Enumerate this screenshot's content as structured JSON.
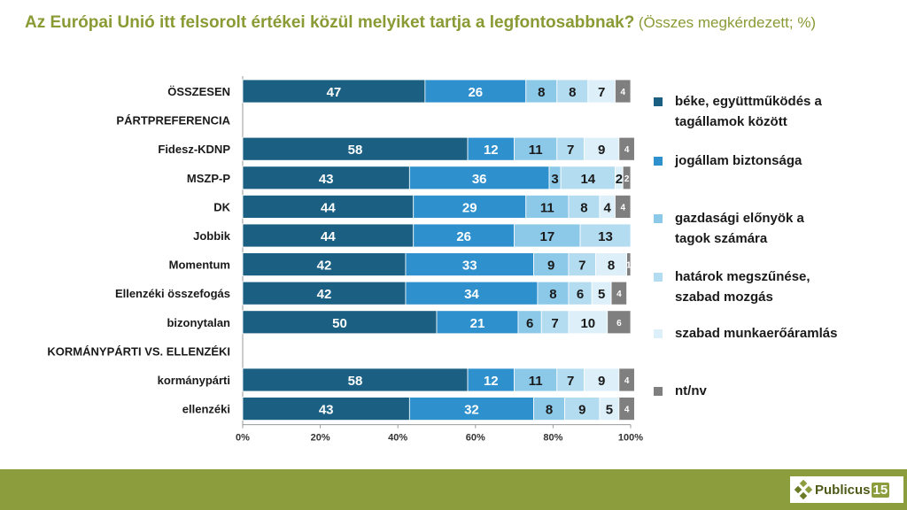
{
  "title": {
    "main": "Az Európai Unió itt felsorolt értékei közül melyiket tartja a legfontosabbnak?",
    "sub": "(Összes megkérdezett; %)"
  },
  "logo": {
    "text": "Publicus",
    "number": "15"
  },
  "chart_data": {
    "type": "bar",
    "orientation": "horizontal-stacked-100",
    "xlim": [
      0,
      100
    ],
    "x_ticks": [
      "0%",
      "20%",
      "40%",
      "60%",
      "80%",
      "100%"
    ],
    "colors": [
      "#1b5f82",
      "#2e90cc",
      "#8cc9e9",
      "#b4dcf1",
      "#ddf0fa",
      "#7f7f7f"
    ],
    "legend": [
      "béke, együttműködés a tagállamok között",
      "jogállam biztonsága",
      "gazdasági előnyök a tagok számára",
      "határok megszűnése, szabad mozgás",
      "szabad munkaerőáramlás",
      "nt/nv"
    ],
    "rows": [
      {
        "label": "ÖSSZESEN",
        "values": [
          47,
          26,
          8,
          8,
          7,
          4
        ]
      },
      {
        "label": "PÁRTPREFERENCIA",
        "header": true
      },
      {
        "label": "Fidesz-KDNP",
        "values": [
          58,
          12,
          11,
          7,
          9,
          4
        ]
      },
      {
        "label": "MSZP-P",
        "values": [
          43,
          36,
          3,
          14,
          2,
          2
        ]
      },
      {
        "label": "DK",
        "values": [
          44,
          29,
          11,
          8,
          4,
          4
        ]
      },
      {
        "label": "Jobbik",
        "values": [
          44,
          26,
          17,
          13,
          0,
          0
        ]
      },
      {
        "label": "Momentum",
        "values": [
          42,
          33,
          9,
          7,
          8,
          1
        ]
      },
      {
        "label": "Ellenzéki összefogás",
        "values": [
          42,
          34,
          8,
          6,
          5,
          4
        ]
      },
      {
        "label": "bizonytalan",
        "values": [
          50,
          21,
          6,
          7,
          10,
          6
        ]
      },
      {
        "label": "KORMÁNYPÁRTI VS. ELLENZÉKI",
        "header": true
      },
      {
        "label": "kormánypárti",
        "values": [
          58,
          12,
          11,
          7,
          9,
          4
        ]
      },
      {
        "label": "ellenzéki",
        "values": [
          43,
          32,
          8,
          9,
          5,
          4
        ]
      }
    ]
  }
}
